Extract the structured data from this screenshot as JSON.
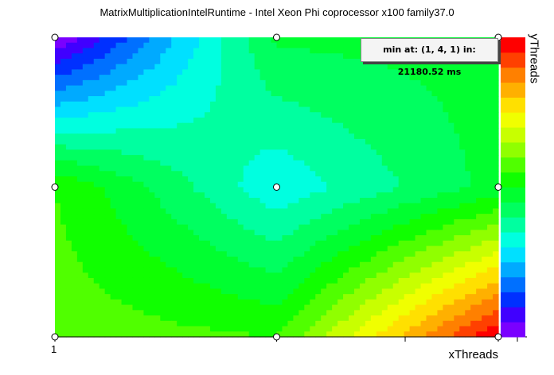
{
  "chart_data": {
    "type": "heatmap",
    "title": "MatrixMultiplicationIntelRuntime - Intel Xeon Phi coprocessor x100 family37.0",
    "xlabel": "xThreads",
    "ylabel": "yThreads",
    "x_tick_labels": [
      "1"
    ],
    "min_annotation": "min at: (1, 4, 1) in: 21180.52 ms",
    "colorscale": [
      "#7a00ff",
      "#4000ff",
      "#0030ff",
      "#0070ff",
      "#00aaff",
      "#00e0ff",
      "#00ffe0",
      "#00ffa0",
      "#00ff60",
      "#00ff30",
      "#10ff00",
      "#50ff00",
      "#90ff00",
      "#c8ff00",
      "#f0ff00",
      "#ffe000",
      "#ffb000",
      "#ff8000",
      "#ff4000",
      "#ff0000"
    ],
    "sample_points": [
      {
        "x": 0.0,
        "y": 0.0,
        "level": 0.0
      },
      {
        "x": 0.5,
        "y": 0.0,
        "level": 0.46
      },
      {
        "x": 1.0,
        "y": 0.0,
        "level": 0.47
      },
      {
        "x": 0.0,
        "y": 0.5,
        "level": 0.55
      },
      {
        "x": 0.5,
        "y": 0.5,
        "level": 0.31
      },
      {
        "x": 1.0,
        "y": 0.5,
        "level": 0.47
      },
      {
        "x": 0.0,
        "y": 1.0,
        "level": 0.58
      },
      {
        "x": 0.5,
        "y": 1.0,
        "level": 0.55
      },
      {
        "x": 1.0,
        "y": 1.0,
        "level": 1.0
      }
    ]
  }
}
